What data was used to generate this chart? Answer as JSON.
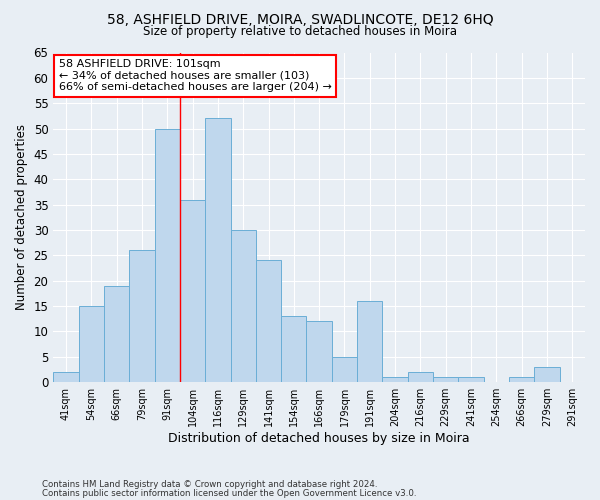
{
  "title1": "58, ASHFIELD DRIVE, MOIRA, SWADLINCOTE, DE12 6HQ",
  "title2": "Size of property relative to detached houses in Moira",
  "xlabel": "Distribution of detached houses by size in Moira",
  "ylabel": "Number of detached properties",
  "categories": [
    "41sqm",
    "54sqm",
    "66sqm",
    "79sqm",
    "91sqm",
    "104sqm",
    "116sqm",
    "129sqm",
    "141sqm",
    "154sqm",
    "166sqm",
    "179sqm",
    "191sqm",
    "204sqm",
    "216sqm",
    "229sqm",
    "241sqm",
    "254sqm",
    "266sqm",
    "279sqm",
    "291sqm"
  ],
  "values": [
    2,
    15,
    19,
    26,
    50,
    36,
    52,
    30,
    24,
    13,
    12,
    5,
    16,
    1,
    2,
    1,
    1,
    0,
    1,
    3,
    0
  ],
  "bar_color": "#bfd7ed",
  "bar_edge_color": "#6aaed6",
  "red_line_index": 4.5,
  "annotation_title": "58 ASHFIELD DRIVE: 101sqm",
  "annotation_line1": "← 34% of detached houses are smaller (103)",
  "annotation_line2": "66% of semi-detached houses are larger (204) →",
  "footer1": "Contains HM Land Registry data © Crown copyright and database right 2024.",
  "footer2": "Contains public sector information licensed under the Open Government Licence v3.0.",
  "ylim": [
    0,
    65
  ],
  "yticks": [
    0,
    5,
    10,
    15,
    20,
    25,
    30,
    35,
    40,
    45,
    50,
    55,
    60,
    65
  ],
  "background_color": "#e8eef4",
  "grid_color": "#ffffff"
}
